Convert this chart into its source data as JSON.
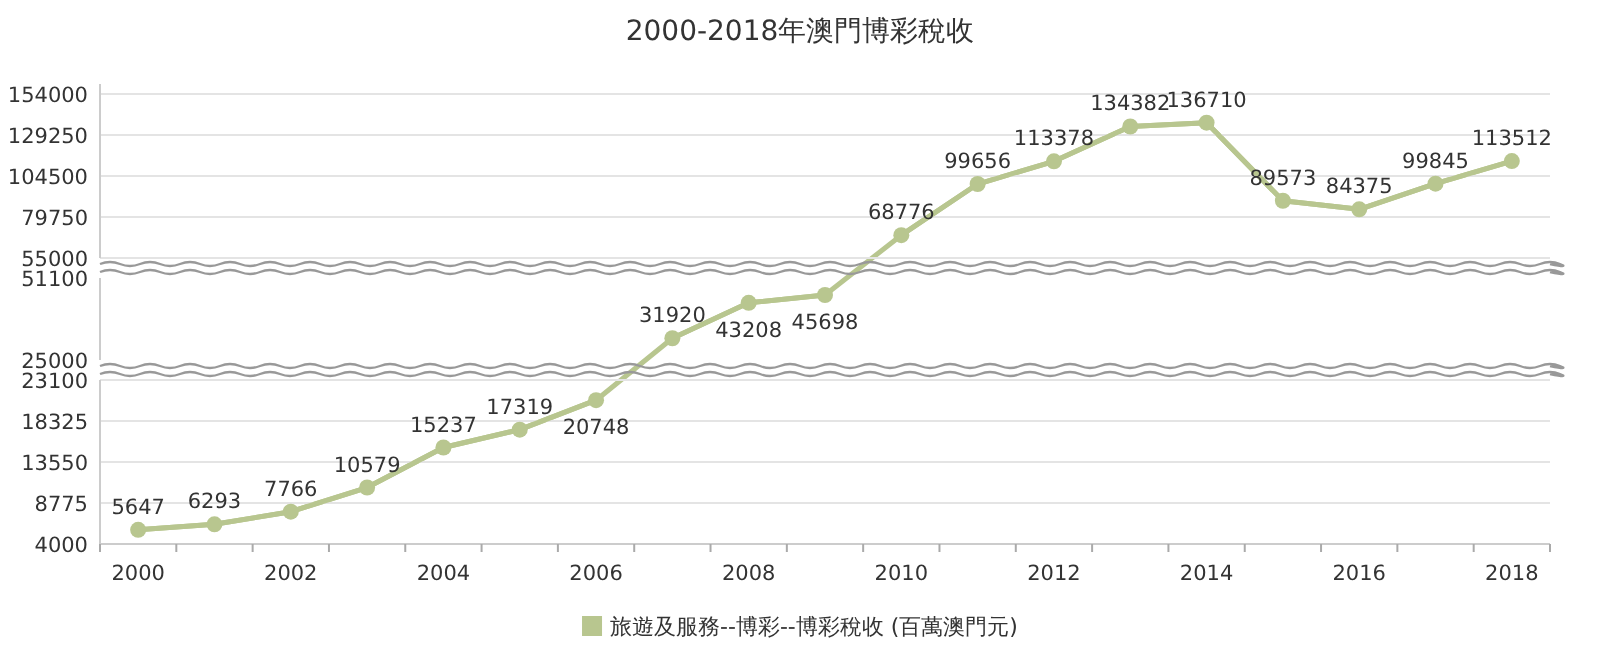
{
  "chart_data": [
    {
      "type": "line",
      "title": "2000-2018年澳門博彩稅收",
      "categories": [
        "2000",
        null,
        "2002",
        null,
        "2004",
        null,
        "2006",
        null,
        "2008",
        null,
        "2010",
        null,
        "2012",
        null,
        "2014",
        null,
        "2016",
        null,
        "2018"
      ],
      "series": [
        {
          "color": "#b8c68f",
          "values": [
            null,
            null,
            null,
            null,
            null,
            null,
            null,
            null,
            null,
            null,
            68776,
            99656,
            113378,
            134382,
            136710,
            89573,
            84375,
            99845,
            113512
          ]
        }
      ],
      "ylim": [
        55000,
        154000
      ],
      "yticks": [
        55000,
        79750,
        104500,
        129250,
        154000
      ],
      "tick_labels": "y",
      "grid": "y",
      "marker": "circle",
      "line_style": "solid",
      "data_labels": true
    },
    {
      "type": "line",
      "categories": [
        "2000",
        null,
        "2002",
        null,
        "2004",
        null,
        "2006",
        null,
        "2008",
        null,
        "2010",
        null,
        "2012",
        null,
        "2014",
        null,
        "2016",
        null,
        "2018"
      ],
      "series": [
        {
          "color": "#b8c68f",
          "values": [
            null,
            null,
            null,
            null,
            null,
            null,
            null,
            31920,
            43208,
            45698,
            null,
            null,
            null,
            null,
            null,
            null,
            null,
            null,
            null
          ]
        }
      ],
      "ylim": [
        25000,
        51100
      ],
      "yticks": [
        25000,
        51100
      ],
      "tick_labels": "y",
      "marker": "circle",
      "line_style": "solid",
      "data_labels": true
    },
    {
      "type": "line",
      "categories": [
        "2000",
        null,
        "2002",
        null,
        "2004",
        null,
        "2006",
        null,
        "2008",
        null,
        "2010",
        null,
        "2012",
        null,
        "2014",
        null,
        "2016",
        null,
        "2018"
      ],
      "series": [
        {
          "name": "旅遊及服務--博彩--博彩稅收 (百萬澳門元)",
          "color": "#b8c68f",
          "values": [
            5647,
            6293,
            7766,
            10579,
            15237,
            17319,
            20748,
            null,
            null,
            null,
            null,
            null,
            null,
            null,
            null,
            null,
            null,
            null,
            null
          ]
        }
      ],
      "ylim": [
        4000,
        23100
      ],
      "yticks": [
        4000,
        8775,
        13550,
        18325,
        23100
      ],
      "grid": "y",
      "legend": "bottom",
      "marker": "circle",
      "line_style": "solid",
      "data_labels": true
    }
  ]
}
